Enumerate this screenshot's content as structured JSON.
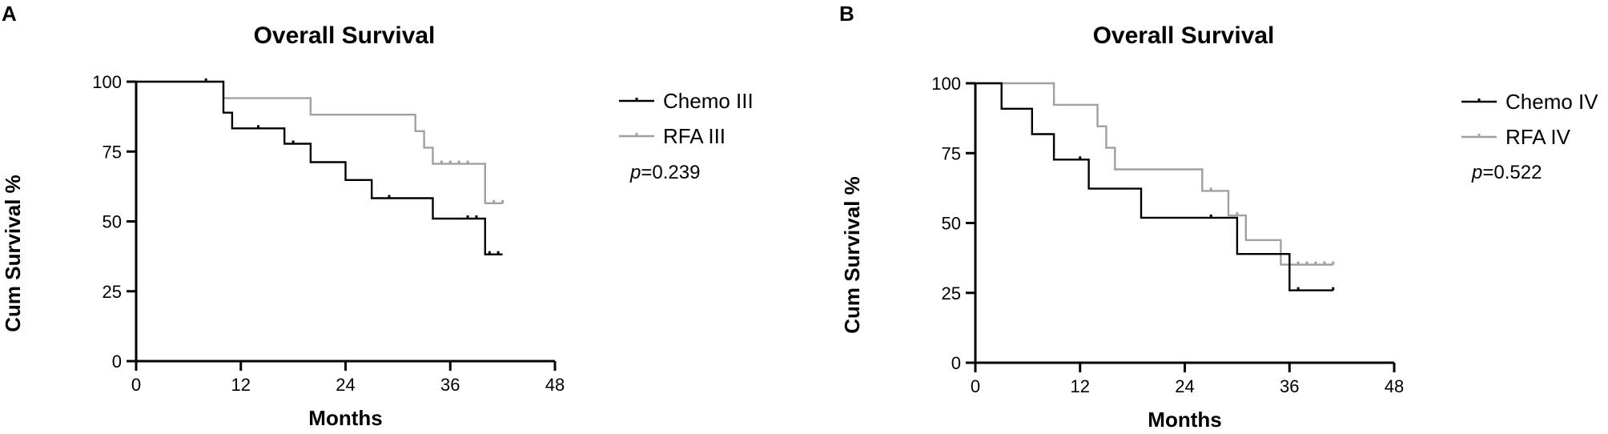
{
  "chart_data": [
    {
      "panel": "A",
      "type": "line",
      "title": "Overall Survival",
      "xlabel": "Months",
      "ylabel": "Cum Survival %",
      "xlim": [
        0,
        48
      ],
      "ylim": [
        0,
        100
      ],
      "xticks": [
        0,
        12,
        24,
        36,
        48
      ],
      "yticks": [
        0,
        25,
        50,
        75,
        100
      ],
      "grid": false,
      "legend_position": "top-right",
      "pvalue": "=0.239",
      "series": [
        {
          "name": "Chemo III",
          "color": "#000000",
          "steps": [
            [
              0,
              100
            ],
            [
              10,
              100
            ],
            [
              10,
              88.9
            ],
            [
              11,
              88.9
            ],
            [
              11,
              83.3
            ],
            [
              17,
              83.3
            ],
            [
              17,
              77.8
            ],
            [
              20,
              77.8
            ],
            [
              20,
              71.2
            ],
            [
              24,
              71.2
            ],
            [
              24,
              64.8
            ],
            [
              27,
              64.8
            ],
            [
              27,
              58.3
            ],
            [
              34,
              58.3
            ],
            [
              34,
              51
            ],
            [
              40,
              51
            ],
            [
              40,
              38.2
            ],
            [
              42,
              38.2
            ]
          ],
          "censored": [
            [
              8,
              100
            ],
            [
              14,
              83.3
            ],
            [
              18,
              77.8
            ],
            [
              29,
              58.3
            ],
            [
              38,
              51
            ],
            [
              39,
              51
            ],
            [
              40.5,
              38.2
            ],
            [
              41.5,
              38.2
            ]
          ]
        },
        {
          "name": "RFA III",
          "color": "#a0a0a0",
          "steps": [
            [
              0,
              100
            ],
            [
              10,
              100
            ],
            [
              10,
              94.1
            ],
            [
              20,
              94.1
            ],
            [
              20,
              88.2
            ],
            [
              32,
              88.2
            ],
            [
              32,
              82.3
            ],
            [
              33,
              82.3
            ],
            [
              33,
              76.4
            ],
            [
              34,
              76.4
            ],
            [
              34,
              70.6
            ],
            [
              40,
              70.6
            ],
            [
              40,
              56.5
            ],
            [
              42,
              56.5
            ]
          ],
          "censored": [
            [
              35,
              70.6
            ],
            [
              36,
              70.6
            ],
            [
              37,
              70.6
            ],
            [
              38,
              70.6
            ],
            [
              41,
              56.5
            ],
            [
              42,
              56.5
            ]
          ]
        }
      ]
    },
    {
      "panel": "B",
      "type": "line",
      "title": "Overall Survival",
      "xlabel": "Months",
      "ylabel": "Cum Survival %",
      "xlim": [
        0,
        48
      ],
      "ylim": [
        0,
        100
      ],
      "xticks": [
        0,
        12,
        24,
        36,
        48
      ],
      "yticks": [
        0,
        25,
        50,
        75,
        100
      ],
      "grid": false,
      "legend_position": "top-right",
      "pvalue": "=0.522",
      "series": [
        {
          "name": "Chemo IV",
          "color": "#000000",
          "steps": [
            [
              0,
              100
            ],
            [
              3,
              100
            ],
            [
              3,
              90.9
            ],
            [
              6.5,
              90.9
            ],
            [
              6.5,
              81.8
            ],
            [
              9,
              81.8
            ],
            [
              9,
              72.7
            ],
            [
              13,
              72.7
            ],
            [
              13,
              62.3
            ],
            [
              19,
              62.3
            ],
            [
              19,
              51.9
            ],
            [
              30,
              51.9
            ],
            [
              30,
              38.9
            ],
            [
              36,
              38.9
            ],
            [
              36,
              25.9
            ],
            [
              41,
              25.9
            ]
          ],
          "censored": [
            [
              12,
              72.7
            ],
            [
              27,
              51.9
            ],
            [
              37,
              25.9
            ],
            [
              41,
              25.9
            ]
          ]
        },
        {
          "name": "RFA IV",
          "color": "#a0a0a0",
          "steps": [
            [
              0,
              100
            ],
            [
              9,
              100
            ],
            [
              9,
              92.3
            ],
            [
              14,
              92.3
            ],
            [
              14,
              84.6
            ],
            [
              15,
              84.6
            ],
            [
              15,
              76.9
            ],
            [
              16,
              76.9
            ],
            [
              16,
              69.2
            ],
            [
              26,
              69.2
            ],
            [
              26,
              61.5
            ],
            [
              29,
              61.5
            ],
            [
              29,
              52.7
            ],
            [
              31,
              52.7
            ],
            [
              31,
              43.9
            ],
            [
              35,
              43.9
            ],
            [
              35,
              35.1
            ],
            [
              41,
              35.1
            ]
          ],
          "censored": [
            [
              27,
              61.5
            ],
            [
              30,
              52.7
            ],
            [
              37,
              35.1
            ],
            [
              38,
              35.1
            ],
            [
              39,
              35.1
            ],
            [
              40,
              35.1
            ],
            [
              41,
              35.1
            ]
          ]
        }
      ]
    }
  ]
}
